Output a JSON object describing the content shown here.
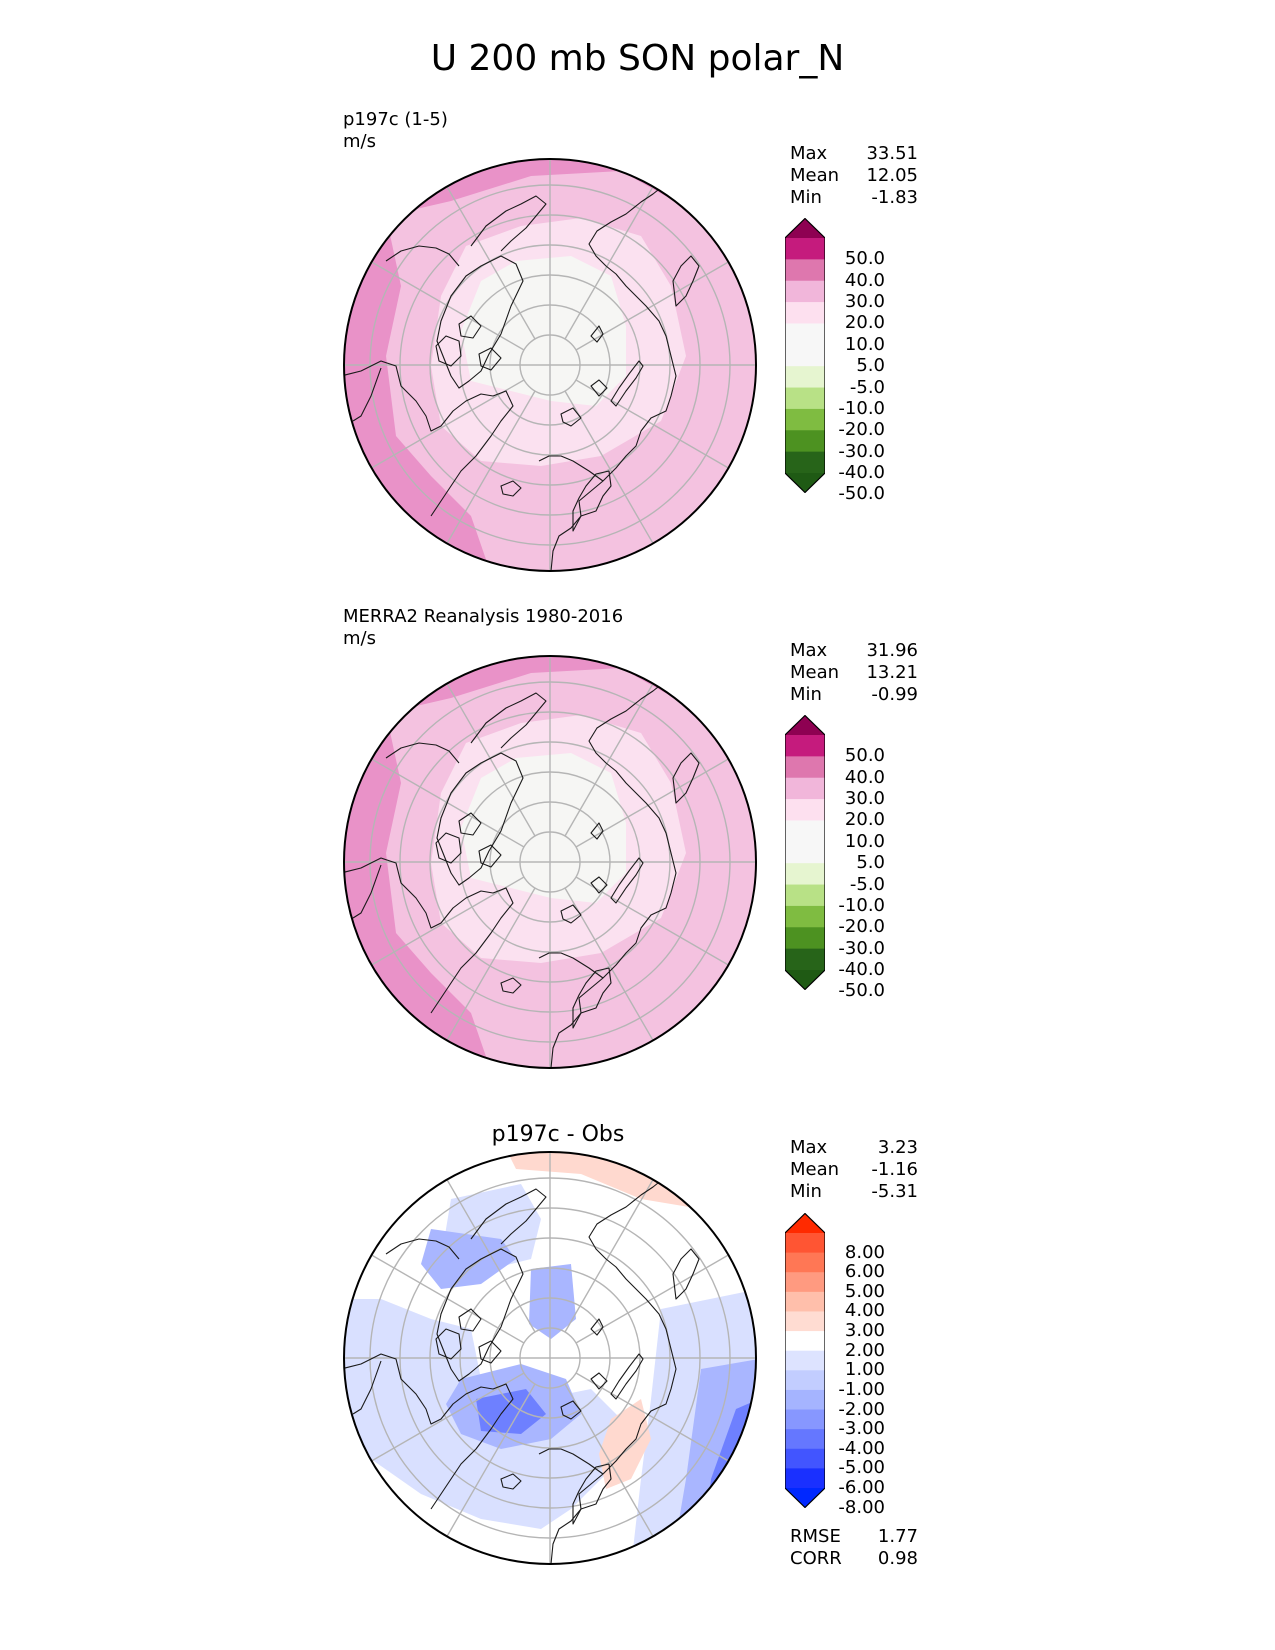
{
  "title": "U 200 mb SON polar_N",
  "panels": [
    {
      "id": "test",
      "label": "p197c (1-5)",
      "units": "m/s",
      "stats": {
        "max_label": "Max",
        "max": "33.51",
        "mean_label": "Mean",
        "mean": "12.05",
        "min_label": "Min",
        "min": "-1.83"
      }
    },
    {
      "id": "ref",
      "label": "MERRA2 Reanalysis 1980-2016",
      "units": "m/s",
      "stats": {
        "max_label": "Max",
        "max": "31.96",
        "mean_label": "Mean",
        "mean": "13.21",
        "min_label": "Min",
        "min": "-0.99"
      }
    },
    {
      "id": "diff",
      "label": "p197c - Obs",
      "stats": {
        "max_label": "Max",
        "max": "3.23",
        "mean_label": "Mean",
        "mean": "-1.16",
        "min_label": "Min",
        "min": "-5.31"
      },
      "metrics": {
        "rmse_label": "RMSE",
        "rmse": "1.77",
        "corr_label": "CORR",
        "corr": "0.98"
      }
    }
  ],
  "colorbar_main": {
    "ticks": [
      "50.0",
      "40.0",
      "30.0",
      "20.0",
      "10.0",
      "5.0",
      "-5.0",
      "-10.0",
      "-20.0",
      "-30.0",
      "-40.0",
      "-50.0"
    ],
    "colors": [
      "#8e0152",
      "#c51b7d",
      "#de77ae",
      "#f1b6da",
      "#fde0ef",
      "#f7f7f7",
      "#f7f7f7",
      "#e6f5d0",
      "#b8e186",
      "#7fbc41",
      "#4d9221",
      "#276419",
      "#1f5a14"
    ]
  },
  "colorbar_diff": {
    "ticks": [
      "8.00",
      "6.00",
      "5.00",
      "4.00",
      "3.00",
      "2.00",
      "1.00",
      "-1.00",
      "-2.00",
      "-3.00",
      "-4.00",
      "-5.00",
      "-6.00",
      "-8.00"
    ],
    "colors": [
      "#ff2a00",
      "#ff5533",
      "#ff7755",
      "#ff9a80",
      "#ffbfab",
      "#ffdcd2",
      "#ffffff",
      "#dde3ff",
      "#c2cdff",
      "#a5b4ff",
      "#8797ff",
      "#6577ff",
      "#4255ff",
      "#1a30ff",
      "#0028ff"
    ]
  },
  "map_fill_colors": {
    "outer_band": "#e992c8",
    "mid_band": "#f4c2e0",
    "inner_band": "#fbe1f0",
    "pole": "#f6f6f4",
    "diff_bg": "#ffffff",
    "diff_neg_light": "#d9e0ff",
    "diff_neg_mid": "#a9b6ff",
    "diff_neg_strong": "#6e80ff",
    "diff_pos_light": "#ffd9cf"
  }
}
